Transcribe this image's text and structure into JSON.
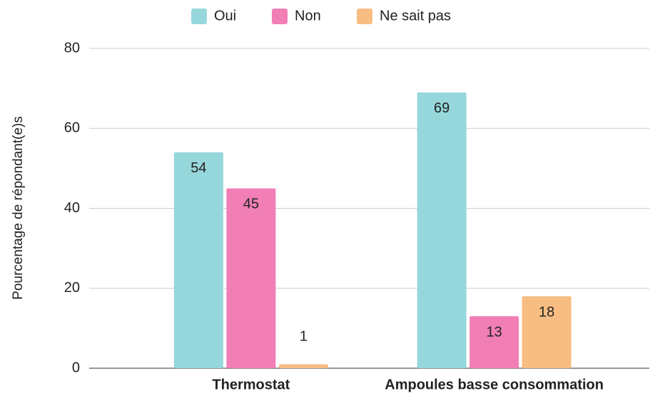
{
  "chart_data": {
    "type": "bar",
    "categories": [
      "Thermostat",
      "Ampoules basse consommation"
    ],
    "series": [
      {
        "name": "Oui",
        "color": "#96d7dc",
        "values": [
          54,
          69
        ]
      },
      {
        "name": "Non",
        "color": "#f17fb5",
        "values": [
          45,
          13
        ]
      },
      {
        "name": "Ne sait pas",
        "color": "#f7bd83",
        "values": [
          1,
          18
        ]
      }
    ],
    "y_label": "Pourcentage de répondant(e)s",
    "ylim": [
      0,
      80
    ],
    "yticks": [
      0,
      20,
      40,
      60,
      80
    ],
    "grid": true,
    "legend": "top"
  }
}
